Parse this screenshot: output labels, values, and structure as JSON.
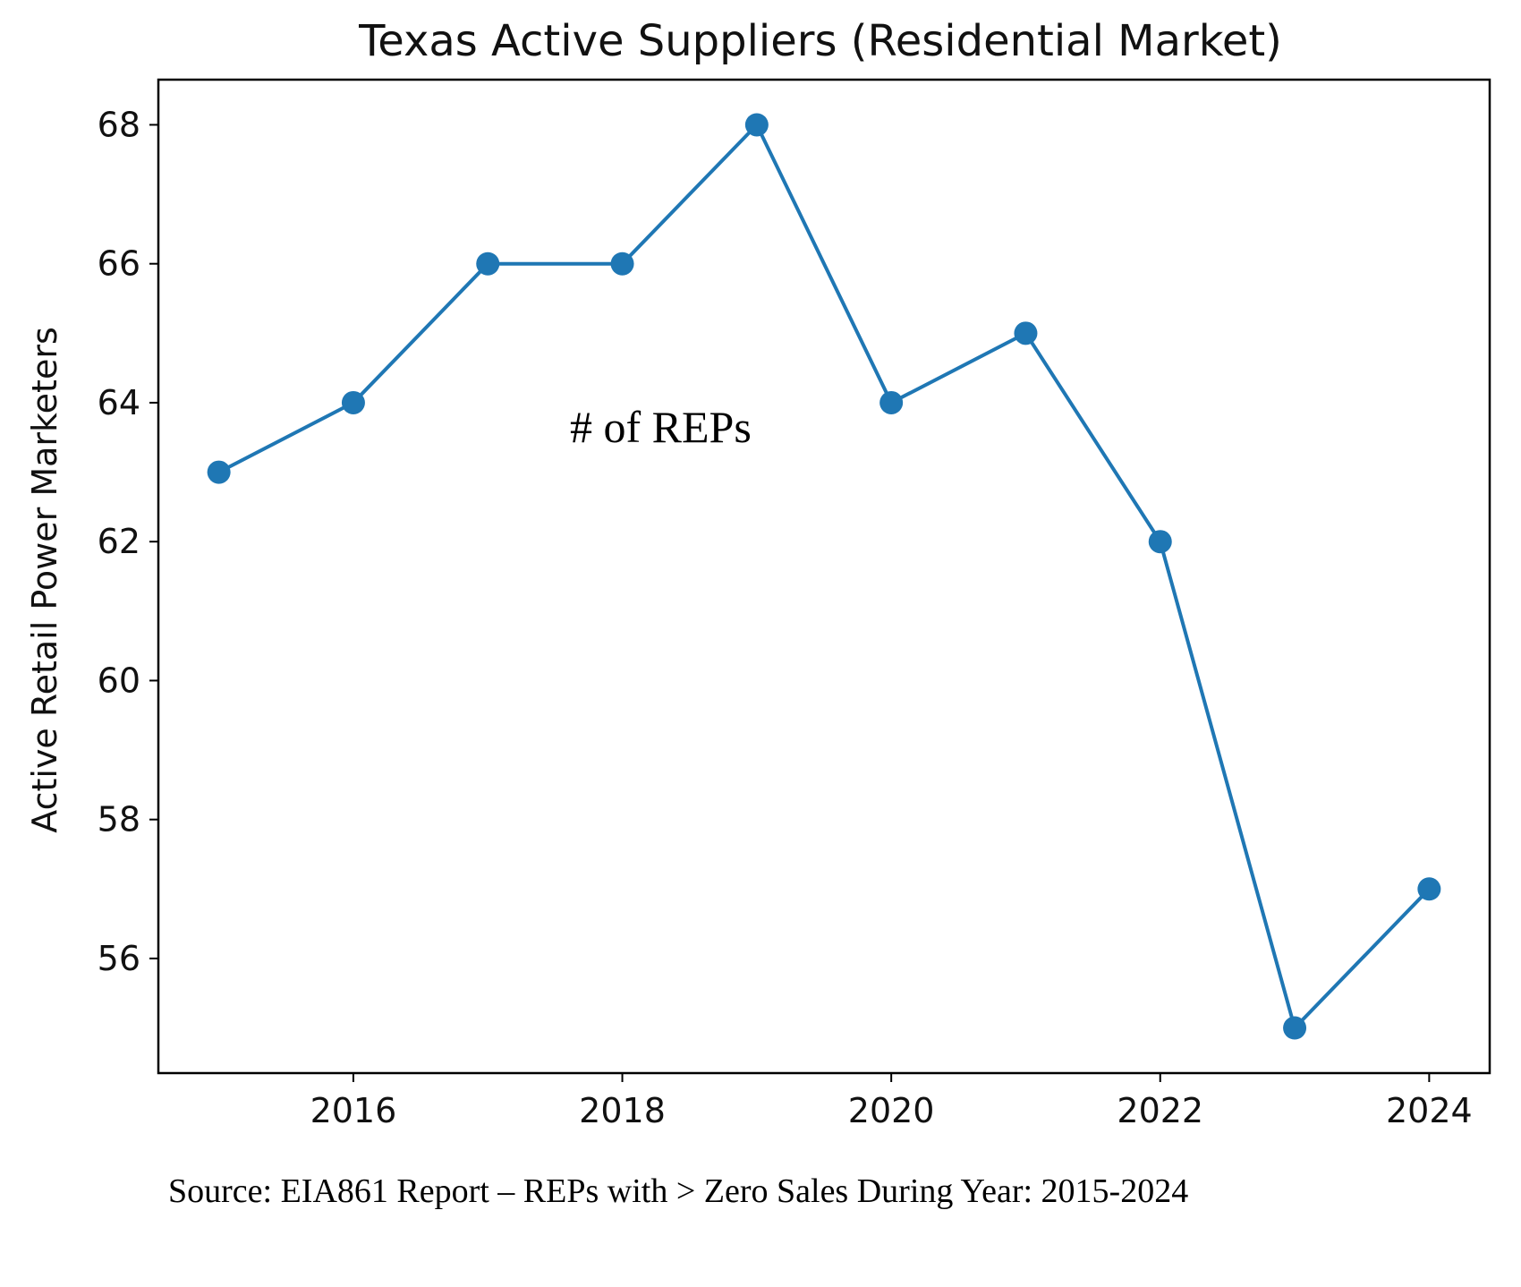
{
  "chart_data": {
    "type": "line",
    "title": "Texas Active Suppliers (Residential Market)",
    "xlabel": "",
    "ylabel": "Active Retail Power Marketers",
    "x": [
      2015,
      2016,
      2017,
      2018,
      2019,
      2020,
      2021,
      2022,
      2023,
      2024
    ],
    "series": [
      {
        "values": [
          63,
          64,
          66,
          66,
          68,
          64,
          65,
          62,
          55,
          57
        ]
      }
    ],
    "xlim": [
      2014.55,
      2024.45
    ],
    "ylim": [
      54.35,
      68.65
    ],
    "xticks": [
      2016,
      2018,
      2020,
      2022,
      2024
    ],
    "yticks": [
      56,
      58,
      60,
      62,
      64,
      66,
      68
    ],
    "grid": false,
    "markers": "circle",
    "color": "#1f77b4",
    "annotation": "# of REPs",
    "source_note": "Source:  EIA861 Report – REPs with > Zero Sales During Year:  2015-2024"
  }
}
